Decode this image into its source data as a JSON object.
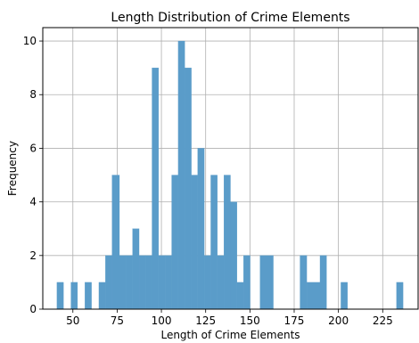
{
  "chart_data": {
    "type": "bar",
    "title": "Length Distribution of Crime Elements",
    "xlabel": "Length of Crime Elements",
    "ylabel": "Frequency",
    "xlim": [
      33,
      245
    ],
    "ylim": [
      0,
      10.5
    ],
    "xticks": [
      50,
      75,
      100,
      125,
      150,
      175,
      200,
      225
    ],
    "yticks": [
      0,
      2,
      4,
      6,
      8,
      10
    ],
    "grid": true,
    "bar_color": "#5a9cc9",
    "bins": [
      {
        "x0": 41.0,
        "x1": 44.7,
        "value": 1
      },
      {
        "x0": 48.9,
        "x1": 52.6,
        "value": 1
      },
      {
        "x0": 56.8,
        "x1": 60.5,
        "value": 1
      },
      {
        "x0": 64.7,
        "x1": 68.4,
        "value": 1
      },
      {
        "x0": 68.4,
        "x1": 72.1,
        "value": 2
      },
      {
        "x0": 72.1,
        "x1": 76.3,
        "value": 5
      },
      {
        "x0": 76.3,
        "x1": 80.0,
        "value": 2
      },
      {
        "x0": 80.0,
        "x1": 83.7,
        "value": 2
      },
      {
        "x0": 83.7,
        "x1": 87.4,
        "value": 3
      },
      {
        "x0": 87.4,
        "x1": 91.1,
        "value": 2
      },
      {
        "x0": 91.1,
        "x1": 94.7,
        "value": 2
      },
      {
        "x0": 94.7,
        "x1": 98.4,
        "value": 9
      },
      {
        "x0": 98.4,
        "x1": 102.1,
        "value": 2
      },
      {
        "x0": 102.1,
        "x1": 105.8,
        "value": 2
      },
      {
        "x0": 105.8,
        "x1": 109.5,
        "value": 5
      },
      {
        "x0": 109.5,
        "x1": 113.2,
        "value": 10
      },
      {
        "x0": 113.2,
        "x1": 116.9,
        "value": 9
      },
      {
        "x0": 116.9,
        "x1": 120.5,
        "value": 5
      },
      {
        "x0": 120.5,
        "x1": 124.2,
        "value": 6
      },
      {
        "x0": 124.2,
        "x1": 127.9,
        "value": 2
      },
      {
        "x0": 127.9,
        "x1": 131.6,
        "value": 5
      },
      {
        "x0": 131.6,
        "x1": 135.3,
        "value": 2
      },
      {
        "x0": 135.3,
        "x1": 139.0,
        "value": 5
      },
      {
        "x0": 139.0,
        "x1": 142.7,
        "value": 4
      },
      {
        "x0": 142.7,
        "x1": 146.4,
        "value": 1
      },
      {
        "x0": 146.4,
        "x1": 150.1,
        "value": 2
      },
      {
        "x0": 155.7,
        "x1": 163.2,
        "value": 2
      },
      {
        "x0": 178.3,
        "x1": 182.1,
        "value": 2
      },
      {
        "x0": 182.1,
        "x1": 189.6,
        "value": 1
      },
      {
        "x0": 189.6,
        "x1": 193.3,
        "value": 2
      },
      {
        "x0": 201.4,
        "x1": 205.1,
        "value": 1
      },
      {
        "x0": 232.8,
        "x1": 236.5,
        "value": 1
      }
    ]
  }
}
